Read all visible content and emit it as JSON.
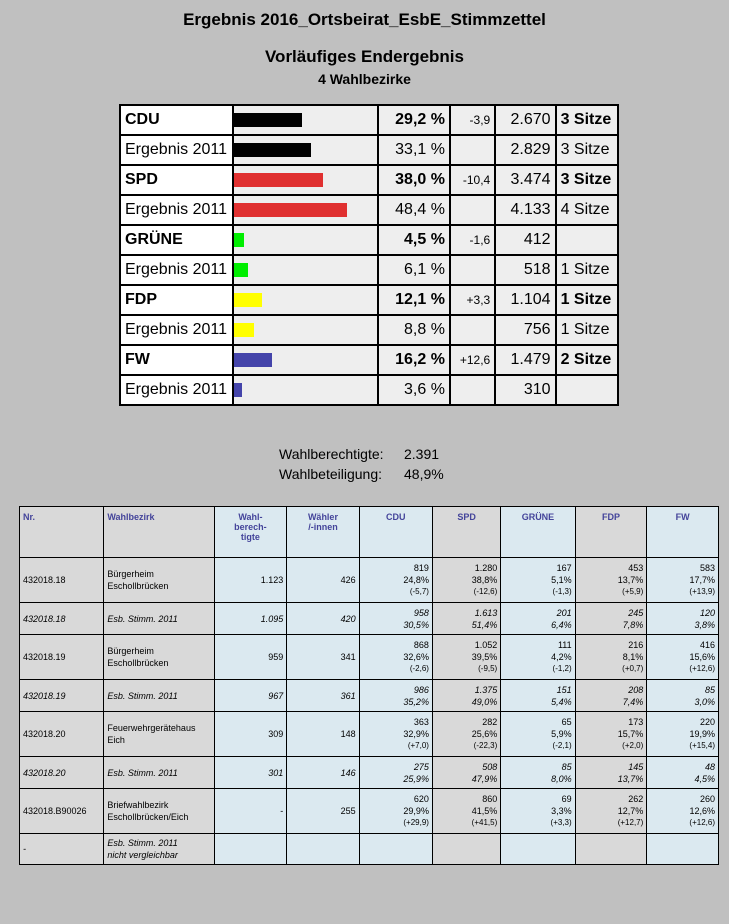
{
  "title": "Ergebnis 2016_Ortsbeirat_EsbE_Stimmzettel",
  "subtitle": "Vorläufiges Endergebnis",
  "subtitle2": "4 Wahlbezirke",
  "summary": [
    {
      "name": "CDU",
      "pct": "29,2 %",
      "diff": "-3,9",
      "votes": "2.670",
      "seats": "3 Sitze",
      "bold": true,
      "color": "#000000",
      "share": 29.2
    },
    {
      "name": "Ergebnis 2011",
      "pct": "33,1 %",
      "diff": "",
      "votes": "2.829",
      "seats": "3 Sitze",
      "bold": false,
      "color": "#000000",
      "share": 33.1
    },
    {
      "name": "SPD",
      "pct": "38,0 %",
      "diff": "-10,4",
      "votes": "3.474",
      "seats": "3 Sitze",
      "bold": true,
      "color": "#e03030",
      "share": 38.0
    },
    {
      "name": "Ergebnis 2011",
      "pct": "48,4 %",
      "diff": "",
      "votes": "4.133",
      "seats": "4 Sitze",
      "bold": false,
      "color": "#e03030",
      "share": 48.4
    },
    {
      "name": "GRÜNE",
      "pct": "4,5 %",
      "diff": "-1,6",
      "votes": "412",
      "seats": "",
      "bold": true,
      "color": "#00ee00",
      "share": 4.5
    },
    {
      "name": "Ergebnis 2011",
      "pct": "6,1 %",
      "diff": "",
      "votes": "518",
      "seats": "1 Sitze",
      "bold": false,
      "color": "#00ee00",
      "share": 6.1
    },
    {
      "name": "FDP",
      "pct": "12,1 %",
      "diff": "+3,3",
      "votes": "1.104",
      "seats": "1 Sitze",
      "bold": true,
      "color": "#ffff00",
      "share": 12.1
    },
    {
      "name": "Ergebnis 2011",
      "pct": "8,8 %",
      "diff": "",
      "votes": "756",
      "seats": "1 Sitze",
      "bold": false,
      "color": "#ffff00",
      "share": 8.8
    },
    {
      "name": "FW",
      "pct": "16,2 %",
      "diff": "+12,6",
      "votes": "1.479",
      "seats": "2 Sitze",
      "bold": true,
      "color": "#4444aa",
      "share": 16.2
    },
    {
      "name": "Ergebnis 2011",
      "pct": "3,6 %",
      "diff": "",
      "votes": "310",
      "seats": "",
      "bold": false,
      "color": "#4444aa",
      "share": 3.6
    }
  ],
  "stats": {
    "eligible_label": "Wahlberechtigte:",
    "eligible_value": "2.391",
    "turnout_label": "Wahlbeteiligung:",
    "turnout_value": "48,9%"
  },
  "detail_headers": [
    "Nr.",
    "Wahlbezirk",
    "Wahl-\nberech-\ntigte",
    "Wähler\n/-innen",
    "CDU",
    "SPD",
    "GRÜNE",
    "FDP",
    "FW"
  ],
  "detail_rows": [
    {
      "nr": "432018.18",
      "bez": "Bürgerheim\nEschollbrücken",
      "wb": "1.123",
      "waehler": "426",
      "italic": false,
      "parties": [
        [
          "819",
          "24,8%",
          "(-5,7)"
        ],
        [
          "1.280",
          "38,8%",
          "(-12,6)"
        ],
        [
          "167",
          "5,1%",
          "(-1,3)"
        ],
        [
          "453",
          "13,7%",
          "(+5,9)"
        ],
        [
          "583",
          "17,7%",
          "(+13,9)"
        ]
      ]
    },
    {
      "nr": "432018.18",
      "bez": "Esb. Stimm. 2011",
      "wb": "1.095",
      "waehler": "420",
      "italic": true,
      "parties": [
        [
          "958",
          "30,5%",
          ""
        ],
        [
          "1.613",
          "51,4%",
          ""
        ],
        [
          "201",
          "6,4%",
          ""
        ],
        [
          "245",
          "7,8%",
          ""
        ],
        [
          "120",
          "3,8%",
          ""
        ]
      ]
    },
    {
      "nr": "432018.19",
      "bez": "Bürgerheim\nEschollbrücken",
      "wb": "959",
      "waehler": "341",
      "italic": false,
      "parties": [
        [
          "868",
          "32,6%",
          "(-2,6)"
        ],
        [
          "1.052",
          "39,5%",
          "(-9,5)"
        ],
        [
          "111",
          "4,2%",
          "(-1,2)"
        ],
        [
          "216",
          "8,1%",
          "(+0,7)"
        ],
        [
          "416",
          "15,6%",
          "(+12,6)"
        ]
      ]
    },
    {
      "nr": "432018.19",
      "bez": "Esb. Stimm. 2011",
      "wb": "967",
      "waehler": "361",
      "italic": true,
      "parties": [
        [
          "986",
          "35,2%",
          ""
        ],
        [
          "1.375",
          "49,0%",
          ""
        ],
        [
          "151",
          "5,4%",
          ""
        ],
        [
          "208",
          "7,4%",
          ""
        ],
        [
          "85",
          "3,0%",
          ""
        ]
      ]
    },
    {
      "nr": "432018.20",
      "bez": "Feuerwehrgerätehaus\nEich",
      "wb": "309",
      "waehler": "148",
      "italic": false,
      "parties": [
        [
          "363",
          "32,9%",
          "(+7,0)"
        ],
        [
          "282",
          "25,6%",
          "(-22,3)"
        ],
        [
          "65",
          "5,9%",
          "(-2,1)"
        ],
        [
          "173",
          "15,7%",
          "(+2,0)"
        ],
        [
          "220",
          "19,9%",
          "(+15,4)"
        ]
      ]
    },
    {
      "nr": "432018.20",
      "bez": "Esb. Stimm. 2011",
      "wb": "301",
      "waehler": "146",
      "italic": true,
      "parties": [
        [
          "275",
          "25,9%",
          ""
        ],
        [
          "508",
          "47,9%",
          ""
        ],
        [
          "85",
          "8,0%",
          ""
        ],
        [
          "145",
          "13,7%",
          ""
        ],
        [
          "48",
          "4,5%",
          ""
        ]
      ]
    },
    {
      "nr": "432018.B90026",
      "bez": "Briefwahlbezirk\nEschollbrücken/Eich",
      "wb": "-",
      "waehler": "255",
      "italic": false,
      "parties": [
        [
          "620",
          "29,9%",
          "(+29,9)"
        ],
        [
          "860",
          "41,5%",
          "(+41,5)"
        ],
        [
          "69",
          "3,3%",
          "(+3,3)"
        ],
        [
          "262",
          "12,7%",
          "(+12,7)"
        ],
        [
          "260",
          "12,6%",
          "(+12,6)"
        ]
      ]
    },
    {
      "nr": "-",
      "bez": "Esb. Stimm. 2011\nnicht vergleichbar",
      "wb": "",
      "waehler": "",
      "italic": true,
      "parties": [
        [
          "",
          "",
          ""
        ],
        [
          "",
          "",
          ""
        ],
        [
          "",
          "",
          ""
        ],
        [
          "",
          "",
          ""
        ],
        [
          "",
          "",
          ""
        ]
      ]
    }
  ]
}
